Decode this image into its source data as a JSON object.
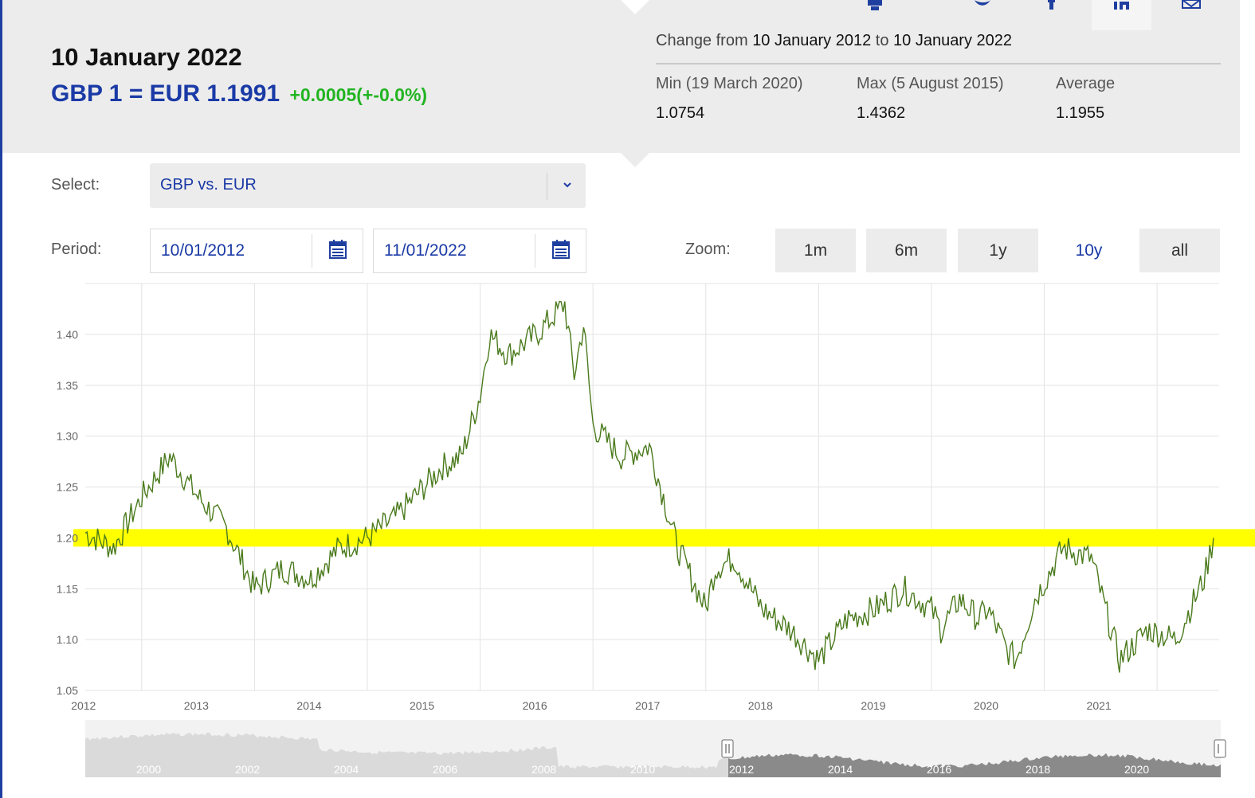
{
  "header": {
    "date": "10 January 2022",
    "rate": "GBP 1 = EUR 1.1991",
    "change": "+0.0005(+-0.0%)",
    "change_from": {
      "prefix": "Change from",
      "start": "10 January 2012",
      "to": "to",
      "end": "10 January 2022"
    },
    "stats": [
      {
        "label": "Min (19 March 2020)",
        "value": "1.0754"
      },
      {
        "label": "Max (5 August 2015)",
        "value": "1.4362"
      },
      {
        "label": "Average",
        "value": "1.1955"
      }
    ]
  },
  "share": {
    "icons": [
      "print-icon",
      "twitter-icon",
      "facebook-icon",
      "linkedin-icon",
      "email-icon"
    ]
  },
  "controls": {
    "select_label": "Select:",
    "select_value": "GBP vs. EUR",
    "period_label": "Period:",
    "period_start": "10/01/2012",
    "period_end": "11/01/2022",
    "zoom_label": "Zoom:",
    "zoom_options": [
      "1m",
      "6m",
      "1y",
      "10y",
      "all"
    ],
    "zoom_active": "10y"
  },
  "colors": {
    "accent": "#1a3aa6",
    "positive": "#22b422",
    "series_line": "#4a7a1c",
    "highlight": "#ffff00",
    "panel_bg": "#ececec"
  },
  "chart_data": {
    "type": "line",
    "title": "",
    "xlabel": "",
    "ylabel": "",
    "ylim": [
      1.05,
      1.45
    ],
    "y_ticks": [
      "1.05",
      "1.10",
      "1.15",
      "1.20",
      "1.25",
      "1.30",
      "1.35",
      "1.40"
    ],
    "x_ticks": [
      "2012",
      "2013",
      "2014",
      "2015",
      "2016",
      "2017",
      "2018",
      "2019",
      "2020",
      "2021"
    ],
    "grid": true,
    "highlight_band": {
      "y": 1.2,
      "color": "#ffff00"
    },
    "series": [
      {
        "name": "",
        "x": [
          "2012-01",
          "2012-04",
          "2012-07",
          "2012-10",
          "2013-01",
          "2013-04",
          "2013-07",
          "2013-10",
          "2014-01",
          "2014-04",
          "2014-07",
          "2014-10",
          "2015-01",
          "2015-03",
          "2015-05",
          "2015-07",
          "2015-08",
          "2015-10",
          "2016-01",
          "2016-04",
          "2016-05",
          "2016-06",
          "2016-07",
          "2016-10",
          "2017-01",
          "2017-04",
          "2017-07",
          "2017-08",
          "2017-10",
          "2018-01",
          "2018-04",
          "2018-07",
          "2018-10",
          "2019-01",
          "2019-04",
          "2019-07",
          "2019-08",
          "2019-10",
          "2019-12",
          "2020-01",
          "2020-03",
          "2020-04",
          "2020-06",
          "2020-09",
          "2020-12",
          "2021-03",
          "2021-06",
          "2021-09",
          "2021-12",
          "2022-01"
        ],
        "values": [
          1.205,
          1.19,
          1.24,
          1.28,
          1.24,
          1.21,
          1.15,
          1.17,
          1.16,
          1.19,
          1.2,
          1.22,
          1.25,
          1.27,
          1.28,
          1.34,
          1.4,
          1.38,
          1.4,
          1.43,
          1.36,
          1.41,
          1.31,
          1.28,
          1.29,
          1.19,
          1.13,
          1.17,
          1.18,
          1.13,
          1.11,
          1.08,
          1.12,
          1.13,
          1.15,
          1.13,
          1.11,
          1.14,
          1.12,
          1.13,
          1.09,
          1.08,
          1.14,
          1.19,
          1.18,
          1.08,
          1.11,
          1.1,
          1.16,
          1.2
        ]
      }
    ]
  },
  "navigator": {
    "ticks": [
      "2000",
      "2002",
      "2004",
      "2006",
      "2008",
      "2010",
      "2012",
      "2014",
      "2016",
      "2018",
      "2020"
    ]
  }
}
